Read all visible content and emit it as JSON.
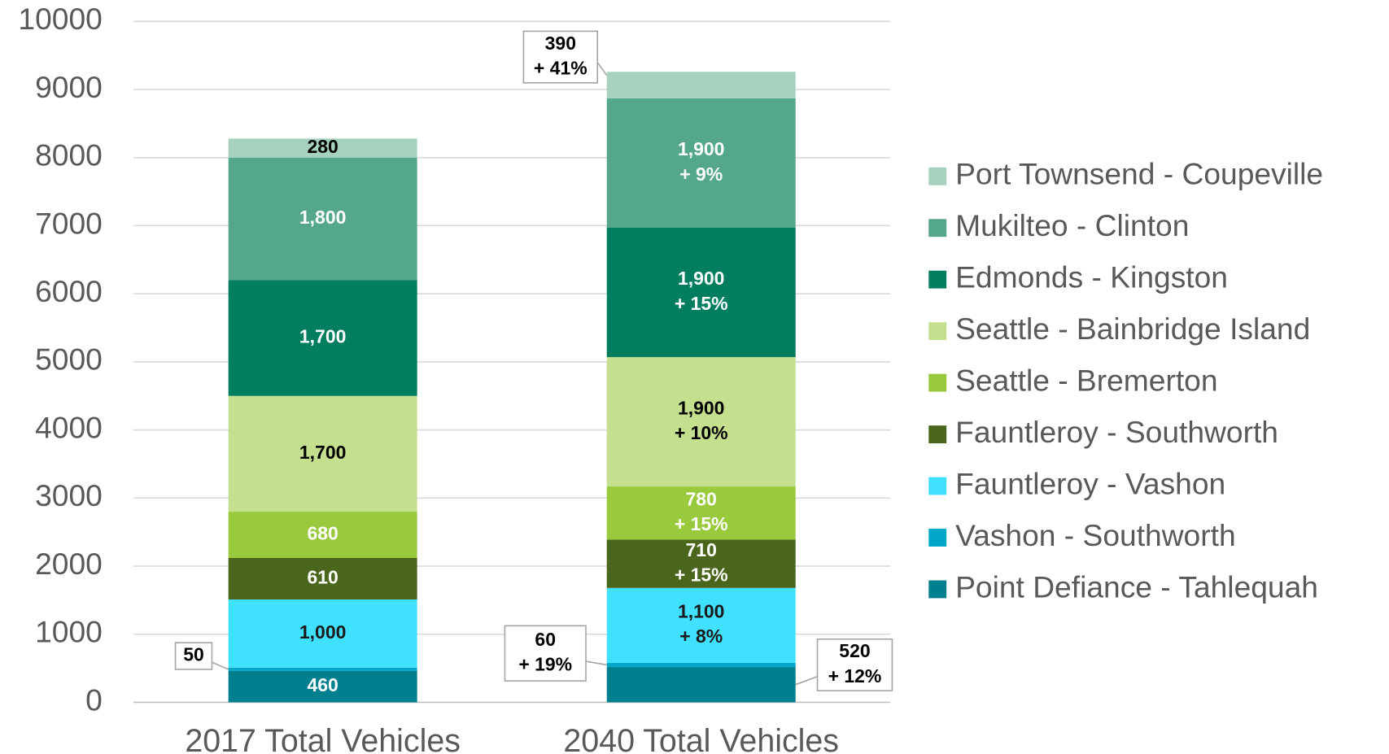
{
  "chart_data": {
    "type": "stacked_bar",
    "categories": [
      "2017 Total Vehicles",
      "2040 Total Vehicles"
    ],
    "ylim": [
      0,
      10000
    ],
    "yticks": [
      0,
      1000,
      2000,
      3000,
      4000,
      5000,
      6000,
      7000,
      8000,
      9000,
      10000
    ],
    "grid": true,
    "legend": "right",
    "series": [
      {
        "name": "Point Defiance - Tahlequah",
        "color": "#00808f",
        "label_color": "#ffffff",
        "values": [
          460,
          520
        ],
        "value_labels": [
          "460",
          "520"
        ],
        "growth_labels": [
          null,
          "+ 12%"
        ]
      },
      {
        "name": "Vashon - Southworth",
        "color": "#00a7c9",
        "label_color": "#000000",
        "values": [
          50,
          60
        ],
        "value_labels": [
          "50",
          "60"
        ],
        "growth_labels": [
          null,
          "+ 19%"
        ]
      },
      {
        "name": "Fauntleroy - Vashon",
        "color": "#40e0ff",
        "label_color": "#1a1a1a",
        "values": [
          1000,
          1100
        ],
        "value_labels": [
          "1,000",
          "1,100"
        ],
        "growth_labels": [
          null,
          "+ 8%"
        ]
      },
      {
        "name": "Fauntleroy - Southworth",
        "color": "#4a661c",
        "label_color": "#ffffff",
        "values": [
          610,
          710
        ],
        "value_labels": [
          "610",
          "710"
        ],
        "growth_labels": [
          null,
          "+ 15%"
        ]
      },
      {
        "name": "Seattle - Bremerton",
        "color": "#99c93d",
        "label_color": "#ffffff",
        "values": [
          680,
          780
        ],
        "value_labels": [
          "680",
          "780"
        ],
        "growth_labels": [
          null,
          "+ 15%"
        ]
      },
      {
        "name": "Seattle - Bainbridge Island",
        "color": "#c4df8e",
        "label_color": "#000000",
        "values": [
          1700,
          1900
        ],
        "value_labels": [
          "1,700",
          "1,900"
        ],
        "growth_labels": [
          null,
          "+ 10%"
        ]
      },
      {
        "name": "Edmonds - Kingston",
        "color": "#007e5f",
        "label_color": "#ffffff",
        "values": [
          1700,
          1900
        ],
        "value_labels": [
          "1,700",
          "1,900"
        ],
        "growth_labels": [
          null,
          "+ 15%"
        ]
      },
      {
        "name": "Mukilteo - Clinton",
        "color": "#54a78a",
        "label_color": "#ffffff",
        "values": [
          1800,
          1900
        ],
        "value_labels": [
          "1,800",
          "1,900"
        ],
        "growth_labels": [
          null,
          "+ 9%"
        ]
      },
      {
        "name": "Port Townsend - Coupeville",
        "color": "#a6d2bd",
        "label_color": "#000000",
        "values": [
          280,
          390
        ],
        "value_labels": [
          "280",
          "390"
        ],
        "growth_labels": [
          null,
          "+ 41%"
        ]
      }
    ]
  }
}
